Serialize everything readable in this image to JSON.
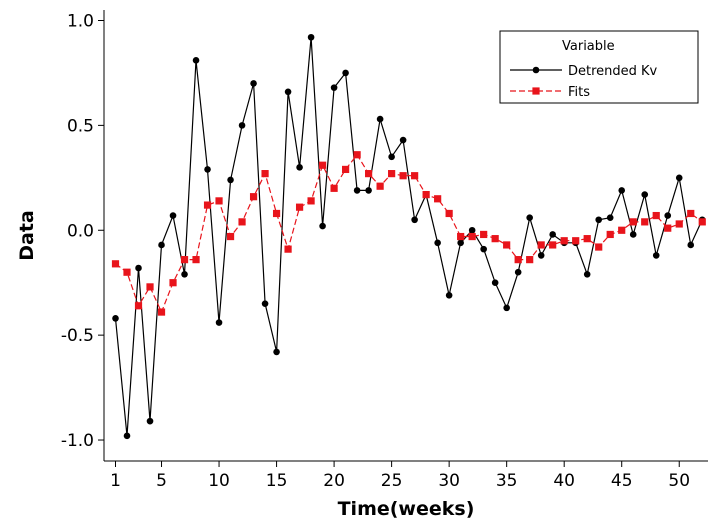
{
  "chart_data": {
    "type": "line",
    "xlabel": "Time(weeks)",
    "ylabel": "Data",
    "xlim": [
      0,
      52.5
    ],
    "ylim": [
      -1.1,
      1.05
    ],
    "xticks": [
      1,
      5,
      10,
      15,
      20,
      25,
      30,
      35,
      40,
      45,
      50
    ],
    "yticks": [
      -1.0,
      -0.5,
      0.0,
      0.5,
      1.0
    ],
    "ytick_labels": [
      "-1.0",
      "-0.5",
      "0.0",
      "0.5",
      "1.0"
    ],
    "grid": false,
    "legend": {
      "title": "Variable",
      "position": "top-right",
      "entries": [
        "Detrended Kv",
        "Fits"
      ]
    },
    "x": [
      1,
      2,
      3,
      4,
      5,
      6,
      7,
      8,
      9,
      10,
      11,
      12,
      13,
      14,
      15,
      16,
      17,
      18,
      19,
      20,
      21,
      22,
      23,
      24,
      25,
      26,
      27,
      28,
      29,
      30,
      31,
      32,
      33,
      34,
      35,
      36,
      37,
      38,
      39,
      40,
      41,
      42,
      43,
      44,
      45,
      46,
      47,
      48,
      49,
      50,
      51,
      52
    ],
    "series": [
      {
        "name": "Detrended Kv",
        "color": "#000000",
        "marker": "circle",
        "line": "solid",
        "values": [
          -0.42,
          -0.98,
          -0.18,
          -0.91,
          -0.07,
          0.07,
          -0.21,
          0.81,
          0.29,
          -0.44,
          0.24,
          0.5,
          0.7,
          -0.35,
          -0.58,
          0.66,
          0.3,
          0.92,
          0.02,
          0.68,
          0.75,
          0.19,
          0.19,
          0.53,
          0.35,
          0.43,
          0.05,
          0.17,
          -0.06,
          -0.31,
          -0.06,
          0.0,
          -0.09,
          -0.25,
          -0.37,
          -0.2,
          0.06,
          -0.12,
          -0.02,
          -0.06,
          -0.06,
          -0.21,
          0.05,
          0.06,
          0.19,
          -0.02,
          0.17,
          -0.12,
          0.07,
          0.25,
          -0.07,
          0.05
        ]
      },
      {
        "name": "Fits",
        "color": "#e8141b",
        "marker": "square",
        "line": "dashed",
        "values": [
          -0.16,
          -0.2,
          -0.36,
          -0.27,
          -0.39,
          -0.25,
          -0.14,
          -0.14,
          0.12,
          0.14,
          -0.03,
          0.04,
          0.16,
          0.27,
          0.08,
          -0.09,
          0.11,
          0.14,
          0.31,
          0.2,
          0.29,
          0.36,
          0.27,
          0.21,
          0.27,
          0.26,
          0.26,
          0.17,
          0.15,
          0.08,
          -0.03,
          -0.03,
          -0.02,
          -0.04,
          -0.07,
          -0.14,
          -0.14,
          -0.07,
          -0.07,
          -0.05,
          -0.05,
          -0.04,
          -0.08,
          -0.02,
          0.0,
          0.04,
          0.04,
          0.07,
          0.01,
          0.03,
          0.08,
          0.04
        ]
      }
    ]
  }
}
